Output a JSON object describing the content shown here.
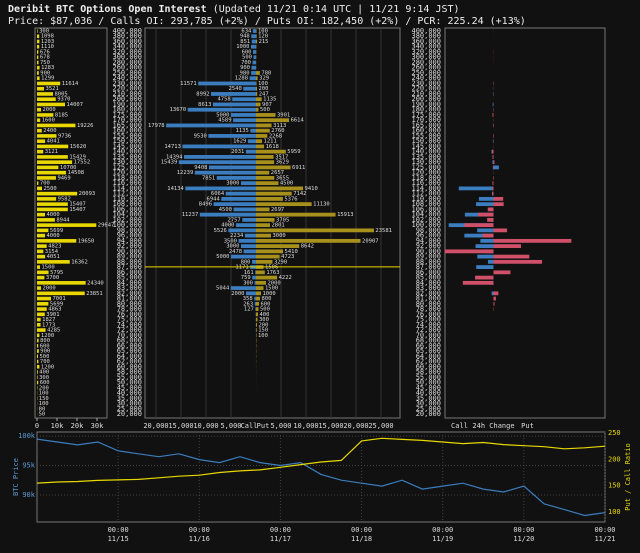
{
  "header": {
    "title": "Deribit BTC Options Open Interest",
    "updated": "(Updated 11/21 0:14 UTC | 11/21 9:14 JST)",
    "summary": "Price: $87,036 / Calls OI: 293,785 (+2%) / Puts OI: 182,450 (+2%) / PCR: 225.24 (+13%)"
  },
  "chart_data": [
    {
      "type": "ladder",
      "current_price": 87036,
      "price_color": "#e8d800",
      "strikes": [
        {
          "value": 400000,
          "label": "400,000"
        },
        {
          "value": 380000,
          "label": "380,000"
        },
        {
          "value": 360000,
          "label": "360,000"
        },
        {
          "value": 340000,
          "label": "340,000"
        },
        {
          "value": 320000,
          "label": "320,000"
        },
        {
          "value": 300000,
          "label": "300,000"
        },
        {
          "value": 280000,
          "label": "280,000"
        },
        {
          "value": 260000,
          "label": "260,000"
        },
        {
          "value": 250000,
          "label": "250,000"
        },
        {
          "value": 240000,
          "label": "240,000"
        },
        {
          "value": 230000,
          "label": "230,000"
        },
        {
          "value": 220000,
          "label": "220,000"
        },
        {
          "value": 210000,
          "label": "210,000"
        },
        {
          "value": 200000,
          "label": "200,000"
        },
        {
          "value": 190000,
          "label": "190,000"
        },
        {
          "value": 180000,
          "label": "180,000"
        },
        {
          "value": 175000,
          "label": "175,000"
        },
        {
          "value": 170000,
          "label": "170,000"
        },
        {
          "value": 165000,
          "label": "165,000"
        },
        {
          "value": 160000,
          "label": "160,000"
        },
        {
          "value": 155000,
          "label": "155,000"
        },
        {
          "value": 150000,
          "label": "150,000"
        },
        {
          "value": 145000,
          "label": "145,000"
        },
        {
          "value": 140000,
          "label": "140,000"
        },
        {
          "value": 135000,
          "label": "135,000"
        },
        {
          "value": 130000,
          "label": "130,000"
        },
        {
          "value": 125000,
          "label": "125,000"
        },
        {
          "value": 120000,
          "label": "120,000"
        },
        {
          "value": 118000,
          "label": "118,000"
        },
        {
          "value": 116000,
          "label": "116,000"
        },
        {
          "value": 114000,
          "label": "114,000"
        },
        {
          "value": 112000,
          "label": "112,000"
        },
        {
          "value": 110000,
          "label": "110,000"
        },
        {
          "value": 108000,
          "label": "108,000"
        },
        {
          "value": 106000,
          "label": "106,000"
        },
        {
          "value": 104000,
          "label": "104,000"
        },
        {
          "value": 102000,
          "label": "102,000"
        },
        {
          "value": 100000,
          "label": "100,000"
        },
        {
          "value": 98000,
          "label": "98,000"
        },
        {
          "value": 96000,
          "label": "96,000"
        },
        {
          "value": 94000,
          "label": "94,000"
        },
        {
          "value": 92000,
          "label": "92,000"
        },
        {
          "value": 90000,
          "label": "90,000"
        },
        {
          "value": 89000,
          "label": "89,000"
        },
        {
          "value": 88000,
          "label": "88,000"
        },
        {
          "value": 87000,
          "label": "87,000"
        },
        {
          "value": 86000,
          "label": "86,000"
        },
        {
          "value": 85000,
          "label": "85,000"
        },
        {
          "value": 84000,
          "label": "84,000"
        },
        {
          "value": 83000,
          "label": "83,000"
        },
        {
          "value": 82000,
          "label": "82,000"
        },
        {
          "value": 81000,
          "label": "81,000"
        },
        {
          "value": 80000,
          "label": "80,000"
        },
        {
          "value": 78000,
          "label": "78,000"
        },
        {
          "value": 76000,
          "label": "76,000"
        },
        {
          "value": 75000,
          "label": "75,000"
        },
        {
          "value": 74000,
          "label": "74,000"
        },
        {
          "value": 72000,
          "label": "72,000"
        },
        {
          "value": 70000,
          "label": "70,000"
        },
        {
          "value": 68000,
          "label": "68,000"
        },
        {
          "value": 66000,
          "label": "66,000"
        },
        {
          "value": 65000,
          "label": "65,000"
        },
        {
          "value": 64000,
          "label": "64,000"
        },
        {
          "value": 62000,
          "label": "62,000"
        },
        {
          "value": 60000,
          "label": "60,000"
        },
        {
          "value": 58000,
          "label": "58,000"
        },
        {
          "value": 55000,
          "label": "55,000"
        },
        {
          "value": 50000,
          "label": "50,000"
        },
        {
          "value": 45000,
          "label": "45,000"
        },
        {
          "value": 40000,
          "label": "40,000"
        },
        {
          "value": 35000,
          "label": "35,000"
        },
        {
          "value": 30000,
          "label": "30,000"
        },
        {
          "value": 25000,
          "label": "25,000"
        },
        {
          "value": 20000,
          "label": "20,000"
        }
      ],
      "total": {
        "color": "#e8d800",
        "xlim": [
          -1000,
          35000
        ],
        "xticks": [
          0,
          {
            "value": 10000,
            "label": "10k"
          },
          {
            "value": 20000,
            "label": "20k"
          },
          {
            "value": 30000,
            "label": "30k"
          }
        ],
        "values": [
          300,
          1098,
          1203,
          1110,
          676,
          678,
          750,
          1283,
          900,
          1299,
          11614,
          3521,
          8005,
          9370,
          14007,
          2000,
          8185,
          1600,
          19226,
          2400,
          9736,
          4041,
          15620,
          3121,
          15429,
          17552,
          10700,
          14508,
          9469,
          700,
          2500,
          20093,
          9582,
          15407,
          15407,
          4000,
          8944,
          29647,
          5699,
          4000,
          19650,
          4823,
          3154,
          4051,
          16362,
          1500,
          5795,
          3700,
          24340,
          2000,
          23851,
          7001,
          5699,
          4863,
          3901,
          1827,
          1773,
          4285,
          1200,
          800,
          600,
          900,
          500,
          700,
          1200,
          400,
          300,
          600,
          200,
          100,
          150,
          100,
          80,
          50
        ]
      },
      "open_interest": {
        "xlim": [
          -22200,
          28800
        ],
        "xticks": [
          {
            "value": -20000,
            "label": "20,000"
          },
          {
            "value": -15000,
            "label": "15,000"
          },
          {
            "value": -10000,
            "label": "10,000"
          },
          {
            "value": -5000,
            "label": "5,000"
          },
          {
            "value": 5000,
            "label": "5,000"
          },
          {
            "value": 10000,
            "label": "10,000"
          },
          {
            "value": 15000,
            "label": "15,000"
          },
          {
            "value": 20000,
            "label": "20,000"
          },
          {
            "value": 25000,
            "label": "25,000"
          }
        ],
        "series": [
          {
            "name": "Call",
            "color": "#3b7dbf",
            "values": [
              634,
              948,
              851,
              1000,
              600,
              500,
              700,
              900,
              980,
              1288,
              11571,
              2540,
              8992,
              4758,
              8613,
              13670,
              5000,
              4589,
              17978,
              1135,
              9530,
              1629,
              14713,
              2031,
              14394,
              15439,
              9408,
              12239,
              7851,
              3000,
              14134,
              6064,
              6944,
              8496,
              4500,
              11237,
              2757,
              4000,
              5526,
              2234,
              3500,
              3000,
              2478,
              5000,
              800,
              1171,
              161,
              759,
              300,
              5044,
              2000,
              358,
              263,
              127,
              61,
              45,
              20,
              30,
              15,
              10,
              10,
              8,
              5,
              5,
              3,
              2,
              2,
              1,
              1,
              1,
              1,
              1,
              1,
              1
            ]
          },
          {
            "name": "Put",
            "color": "#a8901c",
            "values": [
              100,
              120,
              215,
              75,
              63,
              52,
              32,
              43,
              780,
              329,
              100,
              200,
              247,
              1135,
              907,
              500,
              3901,
              6614,
              3113,
              2760,
              2268,
              1211,
              1618,
              5959,
              3517,
              3629,
              6911,
              2657,
              3655,
              4500,
              9410,
              7142,
              5376,
              11130,
              2697,
              15913,
              3705,
              2801,
              23581,
              3000,
              20907,
              8642,
              5410,
              4723,
              3290,
              1506,
              1763,
              4222,
              2000,
              1500,
              1000,
              800,
              600,
              500,
              400,
              300,
              200,
              150,
              100,
              80,
              60,
              50,
              40,
              30,
              20,
              15,
              10,
              8,
              5,
              3,
              2,
              1,
              1,
              1
            ]
          }
        ]
      },
      "change": {
        "title": "24h Change",
        "xlim": [
          -1000,
          2300
        ],
        "series": [
          {
            "name": "Call",
            "color": "#3b7dbf",
            "values": [
              0,
              0,
              0,
              0,
              0,
              0,
              0,
              0,
              0,
              0,
              4,
              0,
              6,
              0,
              16,
              3,
              0,
              2,
              -11,
              0,
              10,
              12,
              0,
              41,
              21,
              20,
              -111,
              0,
              4,
              0,
              716,
              30,
              300,
              360,
              12,
              590,
              45,
              924,
              336,
              600,
              270,
              370,
              200,
              334,
              114,
              356,
              0,
              10,
              64,
              0,
              38,
              0,
              0,
              0,
              0,
              0,
              0,
              0,
              0,
              0,
              0,
              0,
              0,
              0,
              0,
              0,
              0,
              0,
              0,
              0,
              0,
              0,
              0,
              0
            ]
          },
          {
            "name": "Put",
            "color": "#d0506a",
            "values": [
              -2,
              -1,
              0,
              0,
              -3,
              2,
              -1,
              0,
              0,
              0,
              5,
              -4,
              3,
              1,
              -3,
              6,
              -20,
              2,
              10,
              0,
              -10,
              -4,
              -3,
              -30,
              -17,
              20,
              -13,
              -4,
              -10,
              -20,
              -26,
              -23,
              200,
              210,
              -118,
              -319,
              -130,
              -600,
              280,
              -223,
              1606,
              567,
              -1003,
              739,
              1002,
              0,
              350,
              -380,
              -632,
              0,
              100,
              50,
              20,
              7,
              0,
              0,
              0,
              0,
              0,
              0,
              0,
              0,
              0,
              0,
              0,
              0,
              0,
              0,
              0,
              0,
              0,
              0,
              0,
              0
            ]
          }
        ]
      }
    },
    {
      "type": "line",
      "grid": true,
      "x": [
        "11/14 00:00",
        "11/14 06:00",
        "11/14 12:00",
        "11/14 18:00",
        "11/15 00:00",
        "11/15 06:00",
        "11/15 12:00",
        "11/15 18:00",
        "11/16 00:00",
        "11/16 06:00",
        "11/16 12:00",
        "11/16 18:00",
        "11/17 00:00",
        "11/17 06:00",
        "11/17 12:00",
        "11/17 18:00",
        "11/18 00:00",
        "11/18 06:00",
        "11/18 12:00",
        "11/18 18:00",
        "11/19 00:00",
        "11/19 06:00",
        "11/19 12:00",
        "11/19 18:00",
        "11/20 00:00",
        "11/20 06:00",
        "11/20 12:00",
        "11/20 18:00",
        "11/21 00:00"
      ],
      "xlim": [
        "11/14 00:00",
        "11/21 00:00"
      ],
      "xticks": [
        {
          "value": "11/15 00:00",
          "label": [
            "00:00",
            "11/15"
          ]
        },
        {
          "value": "11/16 00:00",
          "label": [
            "00:00",
            "11/16"
          ]
        },
        {
          "value": "11/17 00:00",
          "label": [
            "00:00",
            "11/17"
          ]
        },
        {
          "value": "11/18 00:00",
          "label": [
            "00:00",
            "11/18"
          ]
        },
        {
          "value": "11/19 00:00",
          "label": [
            "00:00",
            "11/19"
          ]
        },
        {
          "value": "11/20 00:00",
          "label": [
            "00:00",
            "11/20"
          ]
        },
        {
          "value": "11/21 00:00",
          "label": [
            "00:00",
            "11/21"
          ]
        }
      ],
      "ylabel": "BTC Price",
      "ylim": [
        85400,
        100700
      ],
      "yticks": [
        {
          "value": 90000,
          "label": "90k"
        },
        {
          "value": 95000,
          "label": "95k"
        },
        {
          "value": 100000,
          "label": "100k"
        }
      ],
      "y2label": "Put / Call Ratio",
      "y2lim": [
        81,
        252
      ],
      "y2ticks": [
        100,
        150,
        200,
        250
      ],
      "series": [
        {
          "color": "#3b7dbf",
          "values": [
            99500,
            99000,
            98500,
            99000,
            97500,
            97000,
            96500,
            97000,
            96000,
            95500,
            96500,
            95500,
            95000,
            95500,
            93500,
            92500,
            92000,
            91500,
            92500,
            91000,
            91500,
            92000,
            91000,
            90500,
            91500,
            88500,
            87500,
            86500,
            87000
          ]
        },
        {
          "color": "#e8d800",
          "axis": "y2",
          "values": [
            155,
            157,
            158,
            160,
            161,
            162,
            165,
            168,
            170,
            175,
            178,
            180,
            185,
            190,
            195,
            198,
            235,
            240,
            238,
            236,
            233,
            230,
            232,
            228,
            226,
            224,
            220,
            222,
            225
          ]
        }
      ]
    }
  ]
}
